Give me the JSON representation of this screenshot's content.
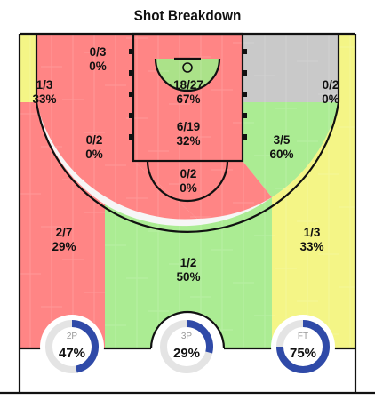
{
  "title": "Shot Breakdown",
  "colors": {
    "red": "#ff7b7b",
    "green": "#a4ea8a",
    "yellow": "#f3f47c",
    "gray": "#c4c4c4",
    "dial_fill": "#2f4aa8",
    "dial_track": "#e4e4e4"
  },
  "chart_data": {
    "type": "shot-chart",
    "zones": [
      {
        "id": "left-corner-3",
        "made": 1,
        "att": 3,
        "pct": 33,
        "label": "1/3",
        "pct_label": "33%",
        "color": "yellow"
      },
      {
        "id": "left-baseline-2",
        "made": 0,
        "att": 3,
        "pct": 0,
        "label": "0/3",
        "pct_label": "0%",
        "color": "red"
      },
      {
        "id": "restricted-area",
        "made": 18,
        "att": 27,
        "pct": 67,
        "label": "18/27",
        "pct_label": "67%",
        "color": "green"
      },
      {
        "id": "right-baseline-2",
        "made": null,
        "att": null,
        "pct": null,
        "label": "",
        "pct_label": "",
        "color": "gray"
      },
      {
        "id": "right-corner-3",
        "made": 0,
        "att": 2,
        "pct": 0,
        "label": "0/2",
        "pct_label": "0%",
        "color": "yellow"
      },
      {
        "id": "paint",
        "made": 6,
        "att": 19,
        "pct": 32,
        "label": "6/19",
        "pct_label": "32%",
        "color": "red"
      },
      {
        "id": "left-elbow-2",
        "made": 0,
        "att": 2,
        "pct": 0,
        "label": "0/2",
        "pct_label": "0%",
        "color": "red"
      },
      {
        "id": "right-elbow-2",
        "made": 3,
        "att": 5,
        "pct": 60,
        "label": "3/5",
        "pct_label": "60%",
        "color": "green"
      },
      {
        "id": "top-key-2",
        "made": 0,
        "att": 2,
        "pct": 0,
        "label": "0/2",
        "pct_label": "0%",
        "color": "red"
      },
      {
        "id": "left-wing-3",
        "made": 2,
        "att": 7,
        "pct": 29,
        "label": "2/7",
        "pct_label": "29%",
        "color": "red"
      },
      {
        "id": "top-of-key-3",
        "made": 1,
        "att": 2,
        "pct": 50,
        "label": "1/2",
        "pct_label": "50%",
        "color": "green"
      },
      {
        "id": "right-wing-3",
        "made": 1,
        "att": 3,
        "pct": 33,
        "label": "1/3",
        "pct_label": "33%",
        "color": "yellow"
      }
    ],
    "summary": [
      {
        "label": "2P",
        "value": 47,
        "display": "47%"
      },
      {
        "label": "3P",
        "value": 29,
        "display": "29%"
      },
      {
        "label": "FT",
        "value": 75,
        "display": "75%"
      }
    ]
  }
}
